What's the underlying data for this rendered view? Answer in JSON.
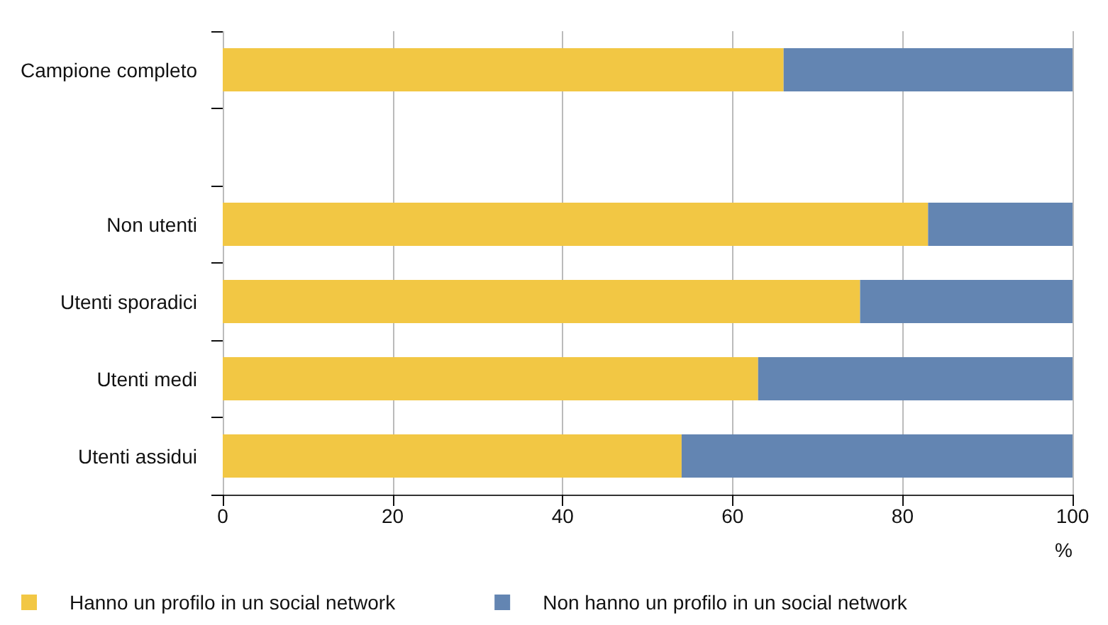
{
  "chart_data": {
    "type": "bar",
    "orientation": "horizontal",
    "stacked": true,
    "categories": [
      "Campione completo",
      null,
      "Non utenti",
      "Utenti sporadici",
      "Utenti medi",
      "Utenti assidui"
    ],
    "series": [
      {
        "name": "Hanno un profilo in un social network",
        "color": "#f2c744",
        "values": [
          66,
          null,
          83,
          75,
          63,
          54
        ]
      },
      {
        "name": "Non hanno un profilo in un social network",
        "color": "#6385b2",
        "values": [
          34,
          null,
          17,
          25,
          37,
          46
        ]
      }
    ],
    "xlim": [
      0,
      100
    ],
    "xticks": [
      0,
      20,
      40,
      60,
      80,
      100
    ],
    "xlabel": "%",
    "grid": "x",
    "legend": "bottom left"
  }
}
